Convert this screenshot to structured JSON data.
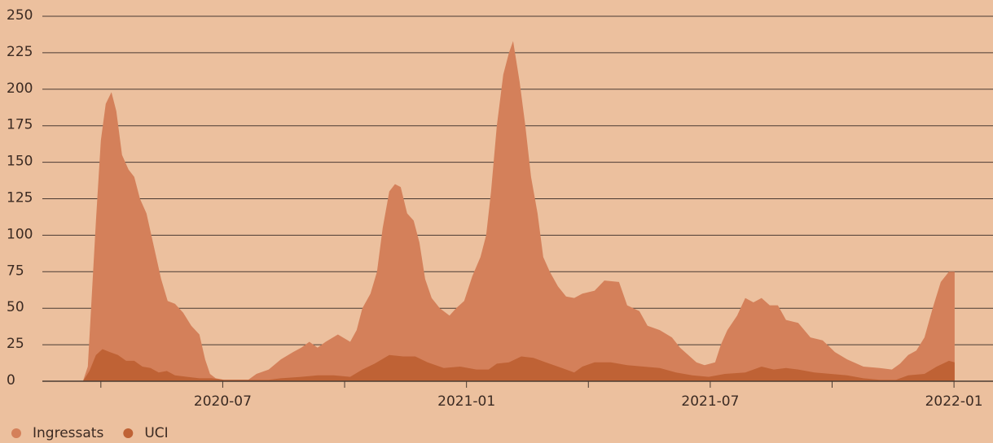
{
  "chart_data": {
    "type": "area",
    "xlim": [
      2020.13,
      2022.08
    ],
    "ylim": [
      0,
      250
    ],
    "yticks": [
      0,
      25,
      50,
      75,
      100,
      125,
      150,
      175,
      200,
      225,
      250
    ],
    "xticks": [
      {
        "value": 2020.5,
        "label": "2020-07"
      },
      {
        "value": 2021.0,
        "label": "2021-01"
      },
      {
        "value": 2021.5,
        "label": "2021-07"
      },
      {
        "value": 2022.0,
        "label": "2022-01"
      }
    ],
    "xminorticks": [
      2020.25,
      2020.75,
      2021.25,
      2021.75
    ],
    "grid": true,
    "legend": "bottom-left",
    "series": [
      {
        "name": "Ingressats",
        "color": "#d4805a",
        "x": [
          2020.2132,
          2020.2233,
          2020.2299,
          2020.24,
          2020.25,
          2020.26,
          2020.2717,
          2020.2817,
          2020.2934,
          2020.3068,
          2020.3185,
          2020.3302,
          2020.3436,
          2020.3569,
          2020.3737,
          2020.387,
          2020.4021,
          2020.4188,
          2020.4355,
          2020.4522,
          2020.4639,
          2020.4739,
          2020.4856,
          2020.5023,
          2020.5274,
          2020.5525,
          2020.5692,
          2020.5943,
          2020.6193,
          2020.6444,
          2020.6611,
          2020.6778,
          2020.6945,
          2020.7112,
          2020.7363,
          2020.7614,
          2020.7747,
          2020.7864,
          2020.8031,
          2020.8165,
          2020.8282,
          2020.8416,
          2020.8533,
          2020.865,
          2020.8783,
          2020.8917,
          2020.9034,
          2020.9151,
          2020.9285,
          2020.9452,
          2020.9652,
          2020.9786,
          2020.9953,
          2021.012,
          2021.0287,
          2021.0404,
          2021.0504,
          2021.0622,
          2021.0755,
          2021.0872,
          2021.0956,
          2021.109,
          2021.1207,
          2021.1324,
          2021.1457,
          2021.1574,
          2021.1708,
          2021.1875,
          2021.2042,
          2021.2209,
          2021.2376,
          2021.2627,
          2021.2828,
          2021.3128,
          2021.3295,
          2021.3546,
          2021.3713,
          2021.3964,
          2021.4214,
          2021.4381,
          2021.4549,
          2021.4716,
          2021.4883,
          2021.51,
          2021.5217,
          2021.5351,
          2021.5551,
          2021.5718,
          2021.5885,
          2021.6053,
          2021.622,
          2021.6387,
          2021.6554,
          2021.6805,
          2021.7055,
          2021.7306,
          2021.7557,
          2021.7807,
          2021.8142,
          2021.8476,
          2021.8727,
          2021.8894,
          2021.9061,
          2021.9228,
          2021.9395,
          2021.9562,
          2021.9729,
          2021.9896,
          2022.0013
        ],
        "values": [
          0,
          10,
          50,
          110,
          165,
          190,
          198,
          185,
          155,
          145,
          140,
          125,
          115,
          95,
          70,
          55,
          53,
          47,
          38,
          32,
          15,
          5,
          2,
          1,
          1,
          1,
          5,
          8,
          15,
          20,
          23,
          27,
          23,
          27,
          32,
          27,
          35,
          50,
          60,
          75,
          105,
          130,
          135,
          133,
          115,
          110,
          95,
          70,
          57,
          50,
          45,
          50,
          55,
          72,
          85,
          100,
          130,
          175,
          210,
          225,
          233,
          205,
          175,
          140,
          115,
          85,
          75,
          65,
          58,
          57,
          60,
          62,
          69,
          68,
          52,
          48,
          38,
          35,
          30,
          23,
          18,
          13,
          11,
          13,
          25,
          35,
          45,
          57,
          54,
          57,
          52,
          52,
          42,
          40,
          30,
          28,
          20,
          15,
          10,
          9,
          8,
          12,
          18,
          21,
          30,
          50,
          68,
          75,
          75
        ]
      },
      {
        "name": "UCI",
        "color": "#bf6235",
        "x": [
          2020.2132,
          2020.2266,
          2020.24,
          2020.2533,
          2020.2684,
          2020.2851,
          2020.3018,
          2020.3185,
          2020.3352,
          2020.3519,
          2020.3686,
          2020.3854,
          2020.4021,
          2020.4271,
          2020.4522,
          2020.4773,
          2020.5023,
          2020.5441,
          2020.5943,
          2020.6193,
          2020.6611,
          2020.6945,
          2020.7279,
          2020.7614,
          2020.7864,
          2020.8115,
          2020.8416,
          2020.87,
          2020.895,
          2020.9201,
          2020.9535,
          2020.987,
          2021.0204,
          2021.0454,
          2021.0622,
          2021.0872,
          2021.1123,
          2021.1373,
          2021.1624,
          2021.1958,
          2021.2209,
          2021.2376,
          2021.2627,
          2021.2961,
          2021.3295,
          2021.363,
          2021.3964,
          2021.4298,
          2021.4632,
          2021.4966,
          2021.5301,
          2021.5718,
          2021.6053,
          2021.6303,
          2021.6554,
          2021.6805,
          2021.7139,
          2021.7473,
          2021.7807,
          2021.8142,
          2021.8476,
          2021.881,
          2021.9061,
          2021.9395,
          2021.9646,
          2021.9896,
          2022.0013
        ],
        "values": [
          0,
          7,
          18,
          22,
          20,
          18,
          14,
          14,
          10,
          9,
          6,
          7,
          4,
          3,
          2,
          2,
          1,
          1,
          1,
          2,
          3,
          4,
          4,
          3,
          8,
          12,
          18,
          17,
          17,
          13,
          9,
          10,
          8,
          8,
          12,
          13,
          17,
          16,
          13,
          9,
          6,
          10,
          13,
          13,
          11,
          10,
          9,
          6,
          4,
          3,
          5,
          6,
          10,
          8,
          9,
          8,
          6,
          5,
          4,
          2,
          1,
          1,
          4,
          5,
          10,
          14,
          13
        ]
      }
    ]
  }
}
